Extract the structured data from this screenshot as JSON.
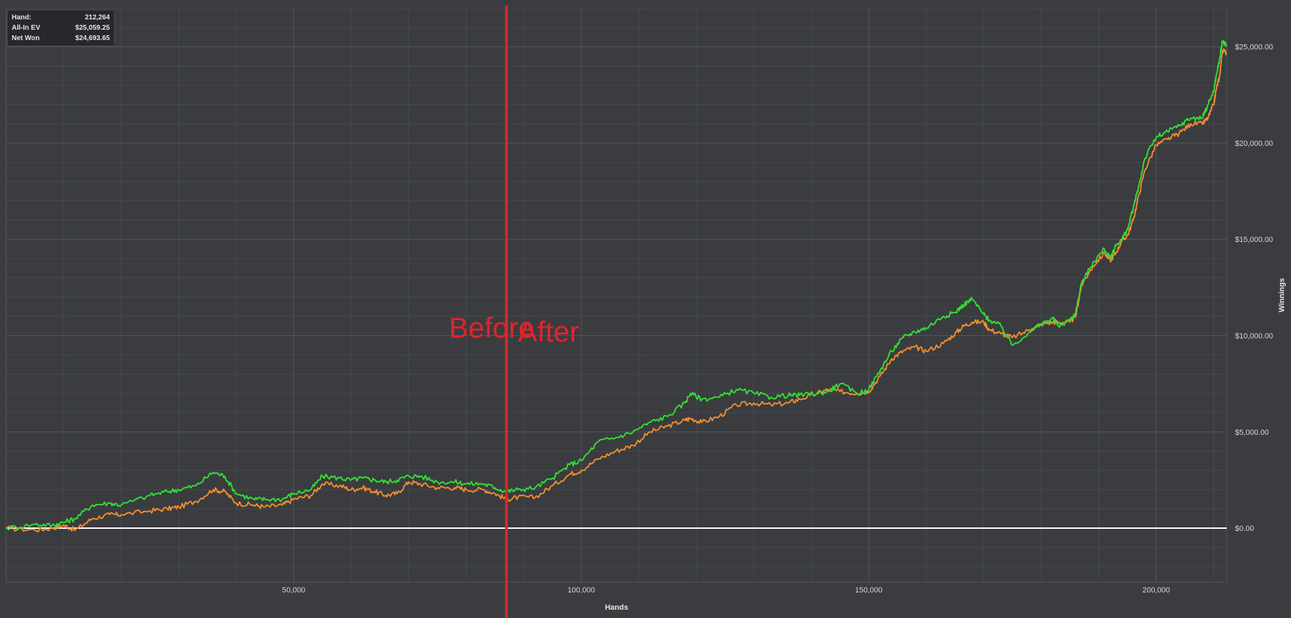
{
  "stats": {
    "rows": [
      {
        "label": "Hand:",
        "value": "212,264"
      },
      {
        "label": "All-In EV",
        "value": "$25,059.25"
      },
      {
        "label": "Net Won",
        "value": "$24,693.65"
      }
    ]
  },
  "chart_data": {
    "type": "line",
    "title": "",
    "xlabel": "Hands",
    "ylabel": "Winnings",
    "xlim": [
      0,
      212264
    ],
    "ylim": [
      -2800,
      27000
    ],
    "x_ticks": [
      50000,
      100000,
      150000,
      200000
    ],
    "x_tick_labels": [
      "50,000",
      "100,000",
      "150,000",
      "200,000"
    ],
    "y_ticks": [
      0,
      5000,
      10000,
      15000,
      20000,
      25000
    ],
    "y_tick_labels": [
      "$0.00",
      "$5,000.00",
      "$10,000.00",
      "$15,000.00",
      "$20,000.00",
      "$25,000.00"
    ],
    "grid": true,
    "y_axis_side": "right",
    "colors": {
      "background": "#3a3c40",
      "grid": "#55585d",
      "zero_line": "#ffffff",
      "all_in_ev": "#33dd33",
      "net_won": "#f08c2c",
      "annotation": "#e0242b"
    },
    "series": [
      {
        "key": "all_in_ev",
        "x": [
          0,
          5000,
          8000,
          10000,
          12000,
          15000,
          18000,
          20000,
          25000,
          28000,
          30000,
          33000,
          36000,
          38000,
          40000,
          43000,
          45000,
          48000,
          50000,
          53000,
          55000,
          58000,
          60000,
          62000,
          64000,
          66000,
          68000,
          70000,
          72000,
          75000,
          78000,
          80000,
          83000,
          85000,
          87000,
          89000,
          92000,
          95000,
          98000,
          100000,
          103000,
          106000,
          109000,
          112000,
          115000,
          118000,
          119000,
          121000,
          124000,
          127000,
          130000,
          133000,
          136000,
          138000,
          141000,
          143000,
          145000,
          148000,
          150000,
          152000,
          154000,
          156000,
          158000,
          160000,
          163000,
          165000,
          166500,
          168000,
          170000,
          171000,
          173000,
          175000,
          178000,
          180000,
          182000,
          183000,
          185000,
          186000,
          187000,
          189000,
          191000,
          192000,
          193000,
          194000,
          195000,
          196000,
          197000,
          198000,
          200000,
          202000,
          204000,
          206000,
          208000,
          209000,
          210000,
          210500,
          211000,
          211500,
          212264
        ],
        "y": [
          0,
          200,
          150,
          300,
          500,
          1200,
          1300,
          1200,
          1700,
          1900,
          2000,
          2200,
          2900,
          2700,
          1800,
          1500,
          1500,
          1500,
          1800,
          2000,
          2700,
          2600,
          2500,
          2600,
          2500,
          2400,
          2500,
          2700,
          2700,
          2400,
          2400,
          2300,
          2300,
          2100,
          1900,
          2000,
          2100,
          2600,
          3300,
          3500,
          4500,
          4700,
          5000,
          5500,
          5800,
          6500,
          7000,
          6700,
          6800,
          7200,
          7000,
          6800,
          6900,
          6900,
          7000,
          7100,
          7500,
          7000,
          7200,
          8200,
          9200,
          9900,
          10200,
          10400,
          11000,
          11200,
          11600,
          11900,
          11100,
          10800,
          10500,
          9500,
          10200,
          10600,
          10900,
          10500,
          10800,
          11200,
          12700,
          13800,
          14500,
          14000,
          14700,
          15000,
          15500,
          16600,
          17800,
          19200,
          20300,
          20600,
          20900,
          21300,
          21300,
          22000,
          22700,
          23600,
          24300,
          25300,
          25000
        ]
      },
      {
        "key": "net_won",
        "x": [
          0,
          5000,
          8000,
          10000,
          12000,
          15000,
          18000,
          20000,
          25000,
          28000,
          30000,
          33000,
          36000,
          38000,
          40000,
          43000,
          45000,
          48000,
          50000,
          53000,
          55000,
          58000,
          60000,
          62000,
          64000,
          66000,
          68000,
          70000,
          72000,
          75000,
          78000,
          80000,
          83000,
          85000,
          87000,
          89000,
          92000,
          95000,
          98000,
          100000,
          103000,
          106000,
          109000,
          112000,
          115000,
          118000,
          119000,
          121000,
          124000,
          127000,
          130000,
          133000,
          136000,
          138000,
          141000,
          143000,
          145000,
          148000,
          150000,
          152000,
          154000,
          156000,
          158000,
          160000,
          163000,
          165000,
          166500,
          168000,
          170000,
          171000,
          173000,
          175000,
          178000,
          180000,
          182000,
          183000,
          185000,
          186000,
          187000,
          189000,
          191000,
          192000,
          193000,
          194000,
          195000,
          196000,
          197000,
          198000,
          200000,
          202000,
          204000,
          206000,
          208000,
          209000,
          210000,
          210500,
          211000,
          211500,
          212264
        ],
        "y": [
          0,
          -100,
          0,
          150,
          -100,
          500,
          700,
          700,
          900,
          1000,
          1100,
          1400,
          2000,
          1900,
          1300,
          1200,
          1100,
          1200,
          1500,
          1700,
          2300,
          2200,
          2000,
          2100,
          1900,
          1700,
          1800,
          2400,
          2300,
          2100,
          2100,
          2000,
          2000,
          1800,
          1500,
          1600,
          1600,
          2200,
          2800,
          3000,
          3600,
          4000,
          4300,
          5000,
          5300,
          5600,
          5700,
          5500,
          5800,
          6400,
          6500,
          6400,
          6500,
          6700,
          7000,
          7200,
          7100,
          7000,
          7100,
          7900,
          8800,
          9200,
          9400,
          9200,
          9600,
          10100,
          10500,
          10700,
          10700,
          10300,
          10100,
          9900,
          10300,
          10600,
          10700,
          10700,
          10700,
          11000,
          12600,
          13600,
          14300,
          13900,
          14300,
          14900,
          15200,
          16000,
          17300,
          18600,
          19900,
          20200,
          20500,
          21000,
          21000,
          21300,
          22000,
          22900,
          23400,
          24800,
          24700
        ]
      }
    ],
    "annotations": [
      {
        "key": "divider",
        "type": "vline",
        "x": 87000
      },
      {
        "key": "before",
        "text": "Before",
        "x": 77000,
        "y": 9900
      },
      {
        "key": "after",
        "text": "After",
        "x": 89000,
        "y": 9700
      }
    ]
  }
}
